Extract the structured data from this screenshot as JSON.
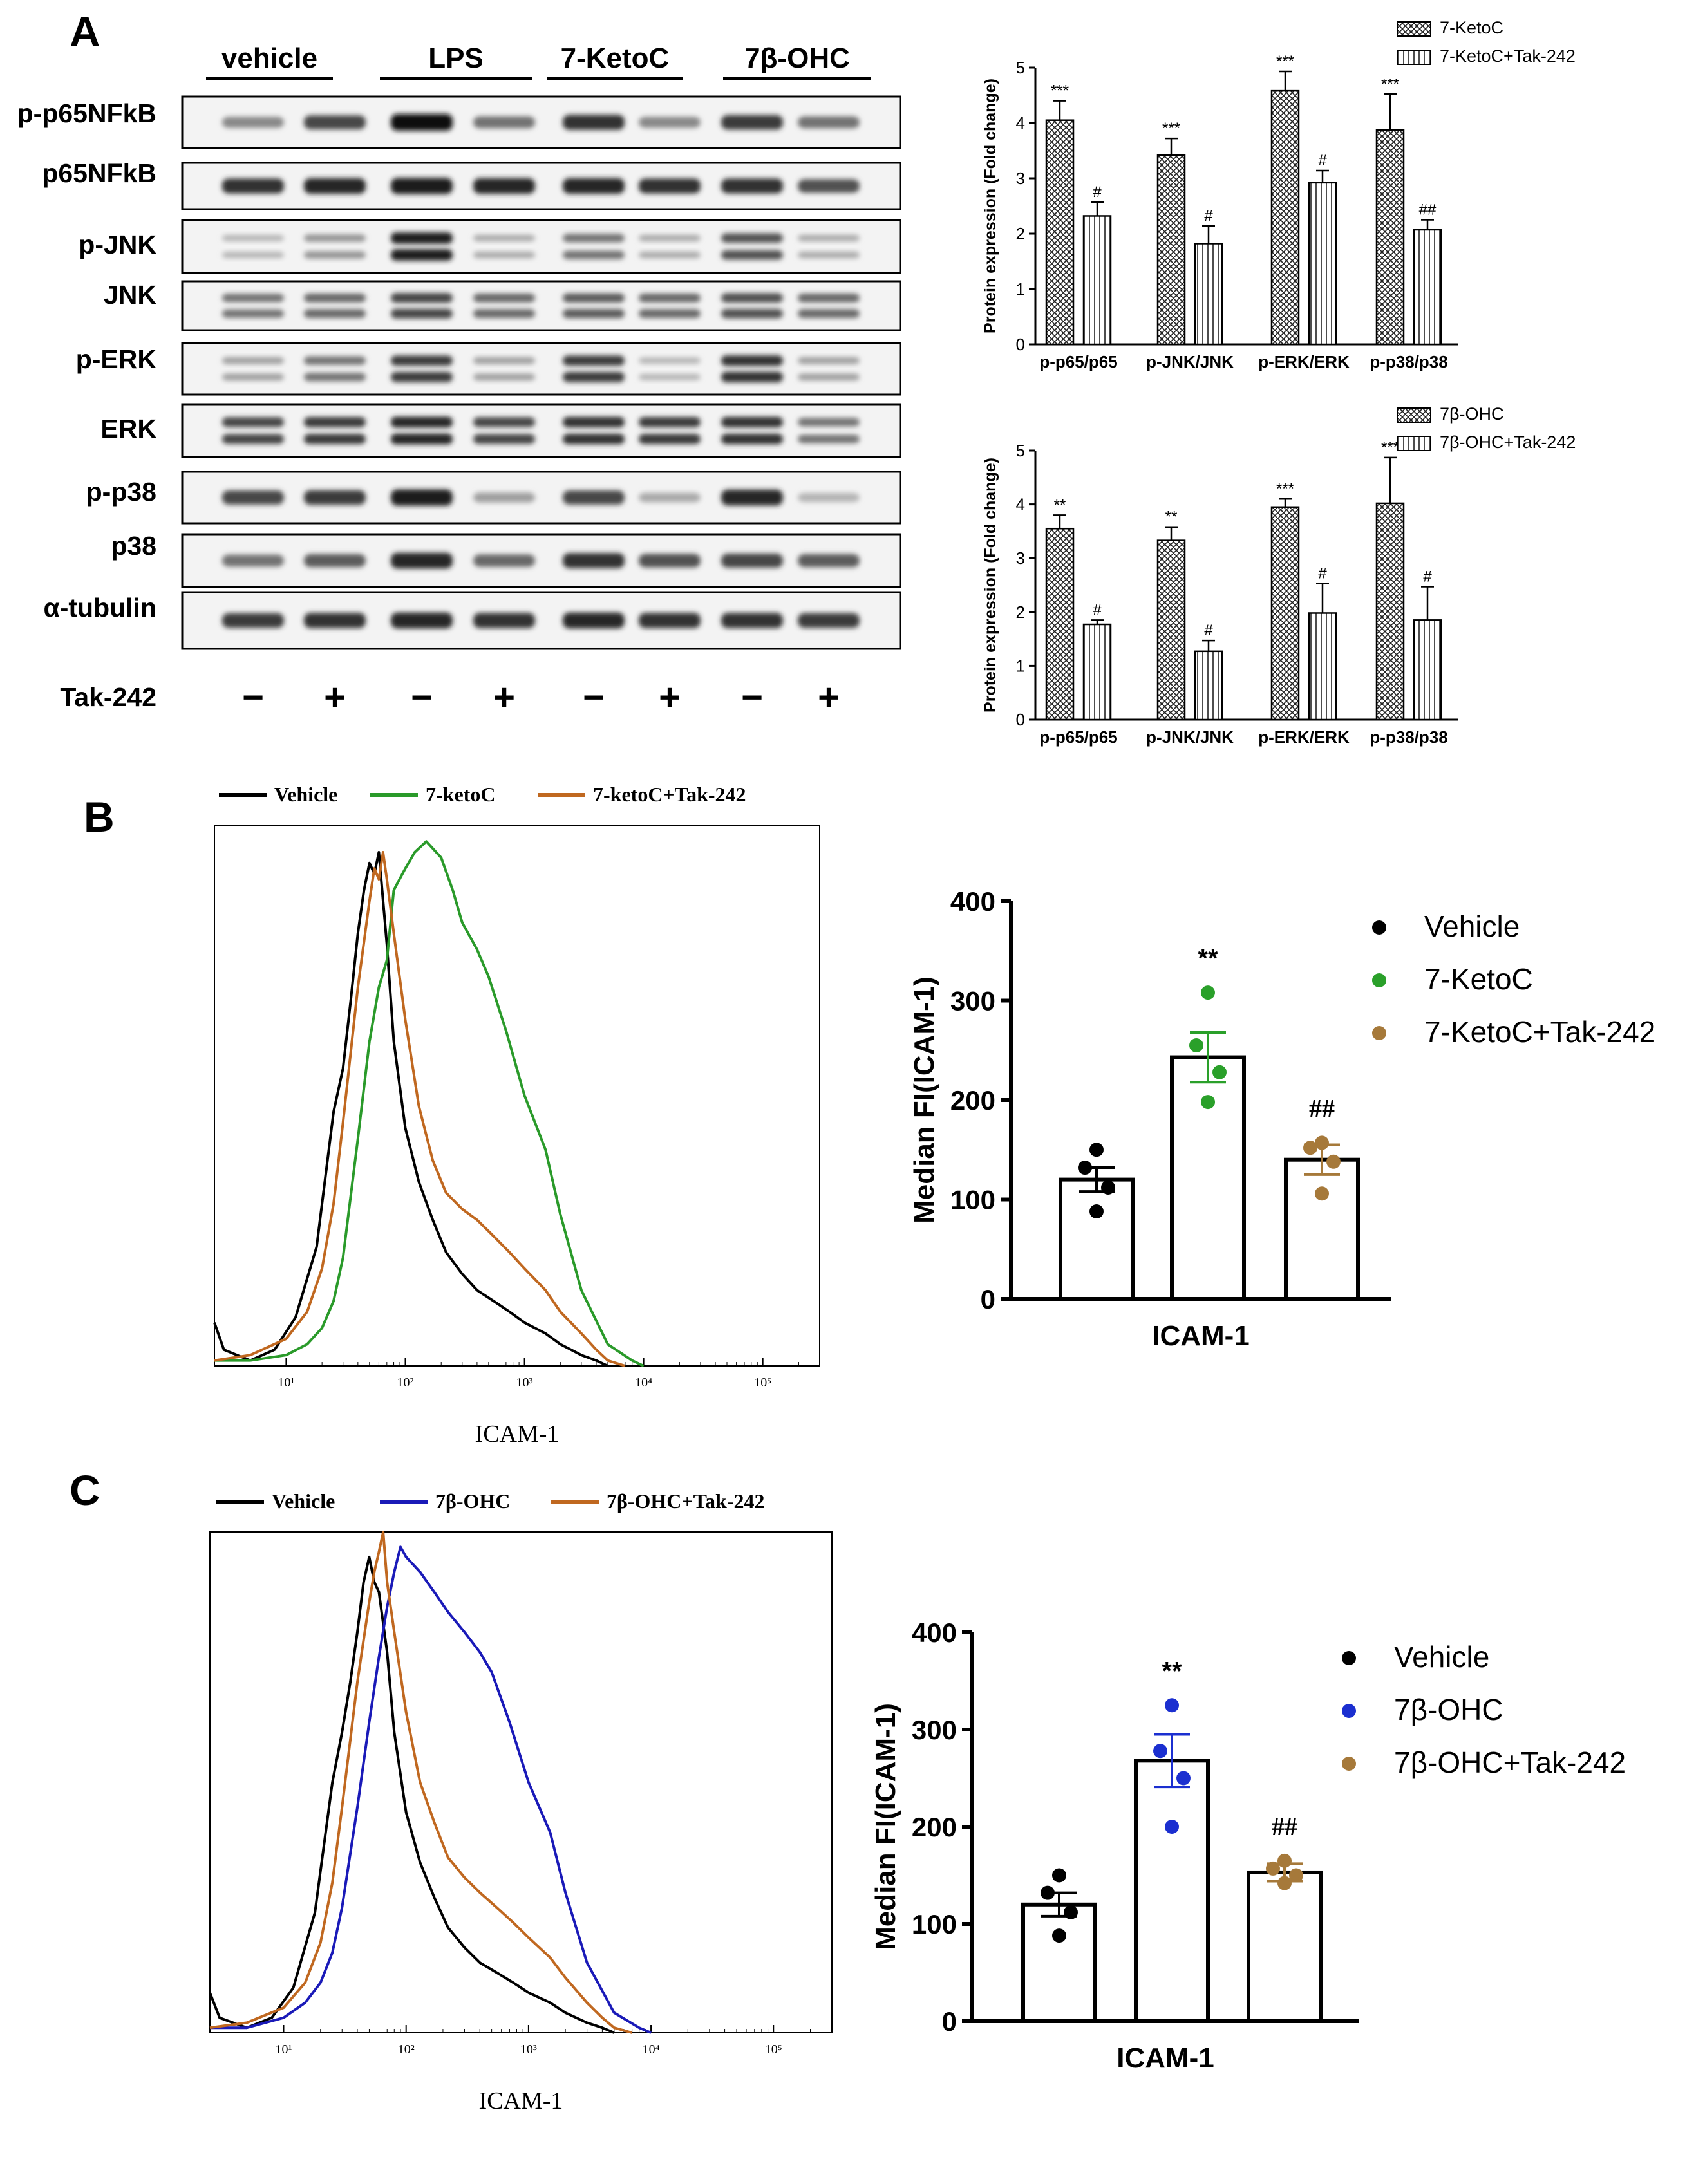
{
  "panel_labels": {
    "a": "A",
    "b": "B",
    "c": "C"
  },
  "western_blot": {
    "groups": [
      "vehicle",
      "LPS",
      "7-KetoC",
      "7β-OHC"
    ],
    "rows": [
      "p-p65NFkB",
      "p65NFkB",
      "p-JNK",
      "JNK",
      "p-ERK",
      "ERK",
      "p-p38",
      "p38",
      "α-tubulin"
    ],
    "tak_label": "Tak-242",
    "tak_signs": [
      "−",
      "+",
      "−",
      "+",
      "−",
      "+",
      "−",
      "+"
    ],
    "band_intensity": [
      [
        0.45,
        0.75,
        1.0,
        0.55,
        0.85,
        0.45,
        0.8,
        0.55
      ],
      [
        0.85,
        0.9,
        0.95,
        0.9,
        0.9,
        0.85,
        0.85,
        0.7
      ],
      [
        0.25,
        0.4,
        0.95,
        0.3,
        0.55,
        0.3,
        0.7,
        0.3
      ],
      [
        0.55,
        0.6,
        0.75,
        0.6,
        0.65,
        0.6,
        0.7,
        0.6
      ],
      [
        0.35,
        0.55,
        0.8,
        0.35,
        0.8,
        0.25,
        0.85,
        0.35
      ],
      [
        0.75,
        0.8,
        0.9,
        0.75,
        0.85,
        0.8,
        0.85,
        0.55
      ],
      [
        0.75,
        0.8,
        0.95,
        0.35,
        0.75,
        0.3,
        0.9,
        0.25
      ],
      [
        0.55,
        0.65,
        0.9,
        0.6,
        0.85,
        0.7,
        0.75,
        0.65
      ],
      [
        0.8,
        0.85,
        0.9,
        0.85,
        0.9,
        0.85,
        0.85,
        0.8
      ]
    ]
  },
  "chart_data": [
    {
      "id": "A-top",
      "type": "bar",
      "ylabel": "Protein expression (Fold change)",
      "ylim": [
        0,
        5
      ],
      "yticks": [
        "0",
        "1",
        "2",
        "3",
        "4",
        "5"
      ],
      "categories": [
        "p-p65/p65",
        "p-JNK/JNK",
        "p-ERK/ERK",
        "p-p38/p38"
      ],
      "legend_position": "top-right",
      "series": [
        {
          "name": "7-KetoC",
          "values": [
            4.05,
            3.42,
            4.58,
            3.87
          ],
          "errors": [
            0.35,
            0.3,
            0.35,
            0.65
          ],
          "sig": [
            "***",
            "***",
            "***",
            "***"
          ],
          "pattern": "crosshatch"
        },
        {
          "name": "7-KetoC+Tak-242",
          "values": [
            2.32,
            1.82,
            2.92,
            2.07
          ],
          "errors": [
            0.25,
            0.32,
            0.22,
            0.18
          ],
          "sig": [
            "#",
            "#",
            "#",
            "##"
          ],
          "pattern": "vertical-lines"
        }
      ]
    },
    {
      "id": "A-bottom",
      "type": "bar",
      "ylabel": "Protein expression (Fold change)",
      "ylim": [
        0,
        5
      ],
      "yticks": [
        "0",
        "1",
        "2",
        "3",
        "4",
        "5"
      ],
      "categories": [
        "p-p65/p65",
        "p-JNK/JNK",
        "p-ERK/ERK",
        "p-p38/p38"
      ],
      "legend_position": "top-right",
      "series": [
        {
          "name": "7β-OHC",
          "values": [
            3.55,
            3.33,
            3.95,
            4.02
          ],
          "errors": [
            0.25,
            0.25,
            0.15,
            0.85
          ],
          "sig": [
            "**",
            "**",
            "***",
            "***"
          ],
          "pattern": "crosshatch"
        },
        {
          "name": "7β-OHC+Tak-242",
          "values": [
            1.77,
            1.27,
            1.98,
            1.85
          ],
          "errors": [
            0.08,
            0.2,
            0.55,
            0.62
          ],
          "sig": [
            "#",
            "#",
            "#",
            "#"
          ],
          "pattern": "vertical-lines"
        }
      ]
    },
    {
      "id": "B-hist",
      "type": "line",
      "xlabel": "ICAM-1",
      "x_scale": "log",
      "xticks": [
        "10¹",
        "10²",
        "10³",
        "10⁴",
        "10⁵"
      ],
      "xlim": [
        2.5,
        300000
      ],
      "ylim": [
        0,
        100
      ],
      "legend_position": "top",
      "series": [
        {
          "name": "Vehicle",
          "color": "#000000",
          "x": [
            2.5,
            3,
            5,
            8,
            12,
            18,
            25,
            30,
            35,
            40,
            45,
            50,
            55,
            60,
            70,
            80,
            100,
            130,
            170,
            220,
            300,
            400,
            550,
            750,
            1000,
            1500,
            2000,
            3000,
            4000,
            5000
          ],
          "y": [
            8,
            3,
            1,
            3,
            9,
            22,
            47,
            55,
            68,
            80,
            88,
            93,
            91,
            95,
            78,
            60,
            44,
            34,
            27,
            21,
            17,
            14,
            12,
            10,
            8,
            6,
            4,
            2,
            1,
            0
          ]
        },
        {
          "name": "7-ketoC",
          "color": "#2a9a2a",
          "x": [
            2.5,
            5,
            10,
            15,
            20,
            25,
            30,
            40,
            50,
            60,
            70,
            80,
            100,
            120,
            150,
            200,
            250,
            300,
            400,
            500,
            700,
            1000,
            1500,
            2000,
            3000,
            5000,
            8000,
            10000
          ],
          "y": [
            1,
            1,
            2,
            4,
            7,
            12,
            20,
            42,
            60,
            70,
            75,
            88,
            92,
            95,
            97,
            94,
            88,
            82,
            77,
            72,
            62,
            50,
            40,
            28,
            14,
            4,
            1,
            0
          ]
        },
        {
          "name": "7-ketoC+Tak-242",
          "color": "#c06820",
          "x": [
            2.5,
            5,
            10,
            15,
            20,
            25,
            30,
            40,
            50,
            55,
            60,
            65,
            70,
            80,
            100,
            130,
            170,
            220,
            300,
            400,
            550,
            750,
            1000,
            1500,
            2000,
            3000,
            4000,
            5000,
            7000
          ],
          "y": [
            1,
            2,
            5,
            10,
            18,
            30,
            45,
            70,
            86,
            92,
            90,
            95,
            90,
            80,
            64,
            48,
            38,
            32,
            29,
            27,
            24,
            21,
            18,
            14,
            10,
            6,
            3,
            1,
            0
          ]
        }
      ]
    },
    {
      "id": "B-scatter",
      "type": "bar",
      "ylabel": "Median FI(ICAM-1)",
      "xlabel": "ICAM-1",
      "ylim": [
        0,
        400
      ],
      "yticks": [
        "0",
        "100",
        "200",
        "300",
        "400"
      ],
      "legend_position": "right",
      "series": [
        {
          "name": "Vehicle",
          "color": "#000000",
          "value": 120,
          "sem": 12,
          "points": [
            150,
            132,
            112,
            88
          ],
          "sig": ""
        },
        {
          "name": "7-KetoC",
          "color": "#2aa02a",
          "value": 243,
          "sem": 25,
          "points": [
            308,
            255,
            228,
            198
          ],
          "sig": "**"
        },
        {
          "name": "7-KetoC+Tak-242",
          "color": "#a6793a",
          "value": 140,
          "sem": 15,
          "points": [
            157,
            152,
            138,
            106
          ],
          "sig": "##"
        }
      ]
    },
    {
      "id": "C-hist",
      "type": "line",
      "xlabel": "ICAM-1",
      "x_scale": "log",
      "xticks": [
        "10¹",
        "10²",
        "10³",
        "10⁴",
        "10⁵"
      ],
      "xlim": [
        2.5,
        300000
      ],
      "ylim": [
        0,
        100
      ],
      "legend_position": "top",
      "series": [
        {
          "name": "Vehicle",
          "color": "#000000",
          "x": [
            2.5,
            3,
            5,
            8,
            12,
            18,
            25,
            30,
            35,
            40,
            45,
            50,
            55,
            60,
            70,
            80,
            100,
            130,
            170,
            220,
            300,
            400,
            550,
            750,
            1000,
            1500,
            2000,
            3000,
            4000,
            5000
          ],
          "y": [
            8,
            3,
            1,
            3,
            9,
            24,
            50,
            60,
            70,
            80,
            90,
            95,
            90,
            88,
            76,
            60,
            44,
            34,
            27,
            21,
            17,
            14,
            12,
            10,
            8,
            6,
            4,
            2,
            1,
            0
          ]
        },
        {
          "name": "7β-OHC",
          "color": "#1a1ab8",
          "x": [
            2.5,
            5,
            10,
            15,
            20,
            25,
            30,
            40,
            50,
            60,
            70,
            80,
            90,
            100,
            130,
            170,
            220,
            300,
            400,
            500,
            700,
            1000,
            1500,
            2000,
            3000,
            5000,
            8000,
            10000
          ],
          "y": [
            1,
            1,
            3,
            6,
            10,
            16,
            25,
            45,
            62,
            75,
            85,
            92,
            97,
            95,
            92,
            88,
            84,
            80,
            76,
            72,
            62,
            50,
            40,
            28,
            14,
            4,
            1,
            0
          ]
        },
        {
          "name": "7β-OHC+Tak-242",
          "color": "#c06820",
          "x": [
            2.5,
            5,
            10,
            15,
            20,
            25,
            30,
            40,
            50,
            55,
            60,
            65,
            70,
            80,
            100,
            130,
            170,
            220,
            300,
            400,
            550,
            750,
            1000,
            1500,
            2000,
            3000,
            4000,
            5000,
            7000
          ],
          "y": [
            1,
            2,
            5,
            10,
            18,
            30,
            45,
            70,
            86,
            92,
            96,
            100,
            90,
            80,
            64,
            50,
            42,
            35,
            31,
            28,
            25,
            22,
            19,
            15,
            11,
            6,
            3,
            1,
            0
          ]
        }
      ]
    },
    {
      "id": "C-scatter",
      "type": "bar",
      "ylabel": "Median FI(ICAM-1)",
      "xlabel": "ICAM-1",
      "ylim": [
        0,
        400
      ],
      "yticks": [
        "0",
        "100",
        "200",
        "300",
        "400"
      ],
      "legend_position": "right",
      "series": [
        {
          "name": "Vehicle",
          "color": "#000000",
          "value": 120,
          "sem": 12,
          "points": [
            150,
            132,
            112,
            88
          ],
          "sig": ""
        },
        {
          "name": "7β-OHC",
          "color": "#1b2fd0",
          "value": 268,
          "sem": 27,
          "points": [
            325,
            278,
            250,
            200
          ],
          "sig": "**"
        },
        {
          "name": "7β-OHC+Tak-242",
          "color": "#a6793a",
          "value": 153,
          "sem": 9,
          "points": [
            165,
            157,
            150,
            142
          ],
          "sig": "##"
        }
      ]
    }
  ]
}
